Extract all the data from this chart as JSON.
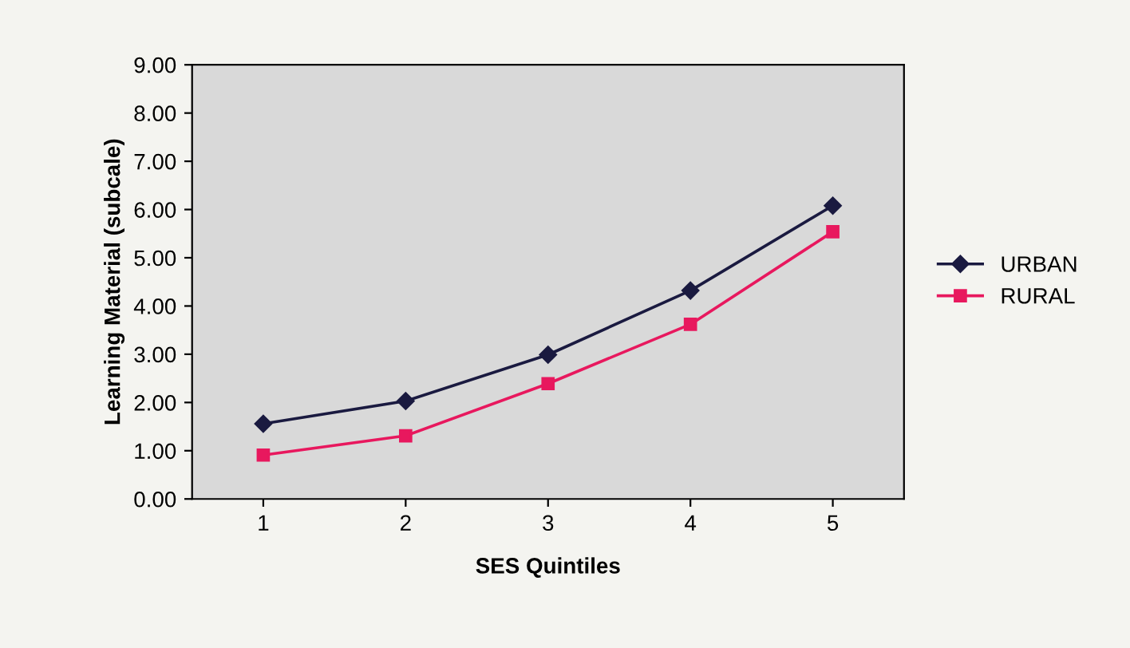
{
  "chart_data": {
    "type": "line",
    "xlabel": "SES Quintiles",
    "ylabel": "Learning Material (subcale)",
    "categories": [
      "1",
      "2",
      "3",
      "4",
      "5"
    ],
    "series": [
      {
        "name": "URBAN",
        "color": "#1a1a40",
        "marker": "diamond",
        "values": [
          1.56,
          2.03,
          2.99,
          4.32,
          6.08
        ]
      },
      {
        "name": "RURAL",
        "color": "#e8185e",
        "marker": "square",
        "values": [
          0.91,
          1.31,
          2.39,
          3.62,
          5.54
        ]
      }
    ],
    "ylim": [
      0,
      9
    ],
    "yticks": [
      {
        "value": 0,
        "label": "0.00"
      },
      {
        "value": 1,
        "label": "1.00"
      },
      {
        "value": 2,
        "label": "2.00"
      },
      {
        "value": 3,
        "label": "3.00"
      },
      {
        "value": 4,
        "label": "4.00"
      },
      {
        "value": 5,
        "label": "5.00"
      },
      {
        "value": 6,
        "label": "6.00"
      },
      {
        "value": 7,
        "label": "7.00"
      },
      {
        "value": 8,
        "label": "8.00"
      },
      {
        "value": 9,
        "label": "9.00"
      }
    ],
    "grid": false,
    "legend": "right"
  }
}
